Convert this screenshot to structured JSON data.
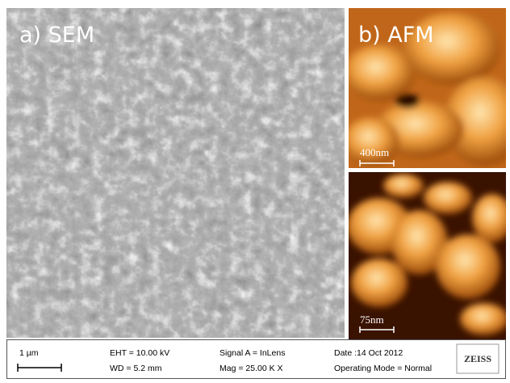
{
  "panels": {
    "sem": {
      "label": "a) SEM"
    },
    "afm": {
      "label": "b) AFM",
      "top_scale": "400nm",
      "bottom_scale": "75nm"
    }
  },
  "info_bar": {
    "scale": "1 µm",
    "eht": "EHT = 10.00 kV",
    "wd": "WD = 5.2 mm",
    "signal": "Signal A = InLens",
    "mag": "Mag = 25.00 K X",
    "date": "Date :14 Oct 2012",
    "mode": "Operating Mode = Normal",
    "logo": "ZEISS"
  }
}
